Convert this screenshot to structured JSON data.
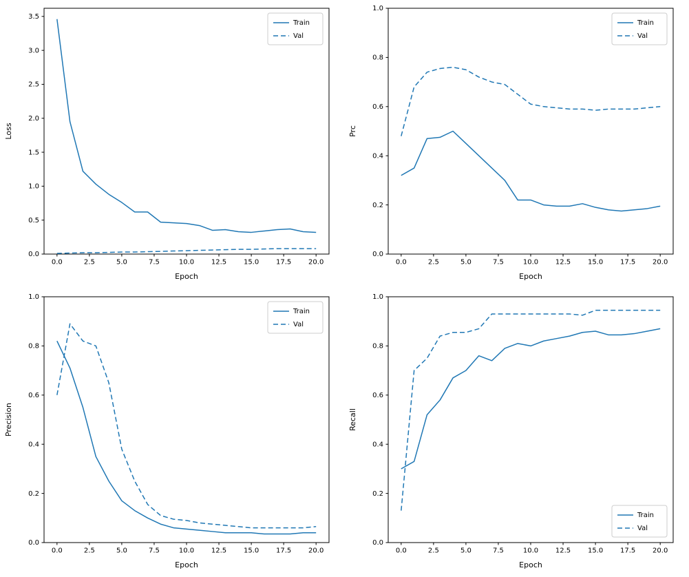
{
  "figure": {
    "background": "#ffffff",
    "line_color": "#1f77b4"
  },
  "chart_data": [
    {
      "id": "loss",
      "type": "line",
      "title": "",
      "xlabel": "Epoch",
      "ylabel": "Loss",
      "xlim": [
        -1,
        21
      ],
      "ylim": [
        0,
        3.62
      ],
      "grid": false,
      "legend_loc": "upper-right",
      "xticks": [
        0,
        2.5,
        5,
        7.5,
        10,
        12.5,
        15,
        17.5,
        20
      ],
      "xtick_labels": [
        "0.0",
        "2.5",
        "5.0",
        "7.5",
        "10.0",
        "12.5",
        "15.0",
        "17.5",
        "20.0"
      ],
      "yticks": [
        0,
        0.5,
        1.0,
        1.5,
        2.0,
        2.5,
        3.0,
        3.5
      ],
      "ytick_labels": [
        "0.0",
        "0.5",
        "1.0",
        "1.5",
        "2.0",
        "2.5",
        "3.0",
        "3.5"
      ],
      "x": [
        0,
        1,
        2,
        3,
        4,
        5,
        6,
        7,
        8,
        9,
        10,
        11,
        12,
        13,
        14,
        15,
        16,
        17,
        18,
        19,
        20
      ],
      "series": [
        {
          "name": "Train",
          "style": "solid",
          "color": "#1f77b4",
          "values": [
            3.46,
            1.95,
            1.22,
            1.03,
            0.88,
            0.76,
            0.62,
            0.62,
            0.47,
            0.46,
            0.45,
            0.42,
            0.35,
            0.36,
            0.33,
            0.32,
            0.34,
            0.36,
            0.37,
            0.33,
            0.32
          ]
        },
        {
          "name": "Val",
          "style": "dashed",
          "color": "#1f77b4",
          "values": [
            0.01,
            0.015,
            0.02,
            0.02,
            0.025,
            0.03,
            0.03,
            0.035,
            0.04,
            0.045,
            0.05,
            0.055,
            0.06,
            0.065,
            0.07,
            0.07,
            0.075,
            0.08,
            0.08,
            0.08,
            0.08
          ]
        }
      ]
    },
    {
      "id": "prc",
      "type": "line",
      "title": "",
      "xlabel": "Epoch",
      "ylabel": "Prc",
      "xlim": [
        -1,
        21
      ],
      "ylim": [
        0,
        1.0
      ],
      "grid": false,
      "legend_loc": "upper-right",
      "xticks": [
        0,
        2.5,
        5,
        7.5,
        10,
        12.5,
        15,
        17.5,
        20
      ],
      "xtick_labels": [
        "0.0",
        "2.5",
        "5.0",
        "7.5",
        "10.0",
        "12.5",
        "15.0",
        "17.5",
        "20.0"
      ],
      "yticks": [
        0,
        0.2,
        0.4,
        0.6,
        0.8,
        1.0
      ],
      "ytick_labels": [
        "0.0",
        "0.2",
        "0.4",
        "0.6",
        "0.8",
        "1.0"
      ],
      "x": [
        0,
        1,
        2,
        3,
        4,
        5,
        6,
        7,
        8,
        9,
        10,
        11,
        12,
        13,
        14,
        15,
        16,
        17,
        18,
        19,
        20
      ],
      "series": [
        {
          "name": "Train",
          "style": "solid",
          "color": "#1f77b4",
          "values": [
            0.32,
            0.35,
            0.47,
            0.475,
            0.5,
            0.45,
            0.4,
            0.35,
            0.3,
            0.22,
            0.22,
            0.2,
            0.195,
            0.195,
            0.205,
            0.19,
            0.18,
            0.175,
            0.18,
            0.185,
            0.195
          ]
        },
        {
          "name": "Val",
          "style": "dashed",
          "color": "#1f77b4",
          "values": [
            0.48,
            0.68,
            0.74,
            0.755,
            0.76,
            0.75,
            0.72,
            0.7,
            0.69,
            0.65,
            0.61,
            0.6,
            0.595,
            0.59,
            0.59,
            0.585,
            0.59,
            0.59,
            0.59,
            0.595,
            0.6
          ]
        }
      ]
    },
    {
      "id": "precision",
      "type": "line",
      "title": "",
      "xlabel": "Epoch",
      "ylabel": "Precision",
      "xlim": [
        -1,
        21
      ],
      "ylim": [
        0,
        1.0
      ],
      "grid": false,
      "legend_loc": "upper-right",
      "xticks": [
        0,
        2.5,
        5,
        7.5,
        10,
        12.5,
        15,
        17.5,
        20
      ],
      "xtick_labels": [
        "0.0",
        "2.5",
        "5.0",
        "7.5",
        "10.0",
        "12.5",
        "15.0",
        "17.5",
        "20.0"
      ],
      "yticks": [
        0,
        0.2,
        0.4,
        0.6,
        0.8,
        1.0
      ],
      "ytick_labels": [
        "0.0",
        "0.2",
        "0.4",
        "0.6",
        "0.8",
        "1.0"
      ],
      "x": [
        0,
        1,
        2,
        3,
        4,
        5,
        6,
        7,
        8,
        9,
        10,
        11,
        12,
        13,
        14,
        15,
        16,
        17,
        18,
        19,
        20
      ],
      "series": [
        {
          "name": "Train",
          "style": "solid",
          "color": "#1f77b4",
          "values": [
            0.82,
            0.71,
            0.55,
            0.35,
            0.25,
            0.17,
            0.13,
            0.1,
            0.075,
            0.06,
            0.055,
            0.05,
            0.045,
            0.04,
            0.04,
            0.04,
            0.035,
            0.035,
            0.035,
            0.04,
            0.04
          ]
        },
        {
          "name": "Val",
          "style": "dashed",
          "color": "#1f77b4",
          "values": [
            0.6,
            0.89,
            0.82,
            0.8,
            0.65,
            0.38,
            0.25,
            0.155,
            0.11,
            0.095,
            0.09,
            0.08,
            0.075,
            0.07,
            0.065,
            0.06,
            0.06,
            0.06,
            0.06,
            0.06,
            0.065
          ]
        }
      ]
    },
    {
      "id": "recall",
      "type": "line",
      "title": "",
      "xlabel": "Epoch",
      "ylabel": "Recall",
      "xlim": [
        -1,
        21
      ],
      "ylim": [
        0,
        1.0
      ],
      "grid": false,
      "legend_loc": "lower-right",
      "xticks": [
        0,
        2.5,
        5,
        7.5,
        10,
        12.5,
        15,
        17.5,
        20
      ],
      "xtick_labels": [
        "0.0",
        "2.5",
        "5.0",
        "7.5",
        "10.0",
        "12.5",
        "15.0",
        "17.5",
        "20.0"
      ],
      "yticks": [
        0,
        0.2,
        0.4,
        0.6,
        0.8,
        1.0
      ],
      "ytick_labels": [
        "0.0",
        "0.2",
        "0.4",
        "0.6",
        "0.8",
        "1.0"
      ],
      "x": [
        0,
        1,
        2,
        3,
        4,
        5,
        6,
        7,
        8,
        9,
        10,
        11,
        12,
        13,
        14,
        15,
        16,
        17,
        18,
        19,
        20
      ],
      "series": [
        {
          "name": "Train",
          "style": "solid",
          "color": "#1f77b4",
          "values": [
            0.3,
            0.33,
            0.52,
            0.58,
            0.67,
            0.7,
            0.76,
            0.74,
            0.79,
            0.81,
            0.8,
            0.82,
            0.83,
            0.84,
            0.855,
            0.86,
            0.845,
            0.845,
            0.85,
            0.86,
            0.87
          ]
        },
        {
          "name": "Val",
          "style": "dashed",
          "color": "#1f77b4",
          "values": [
            0.13,
            0.7,
            0.75,
            0.84,
            0.855,
            0.855,
            0.87,
            0.93,
            0.93,
            0.93,
            0.93,
            0.93,
            0.93,
            0.93,
            0.925,
            0.945,
            0.945,
            0.945,
            0.945,
            0.945,
            0.945
          ]
        }
      ]
    }
  ]
}
